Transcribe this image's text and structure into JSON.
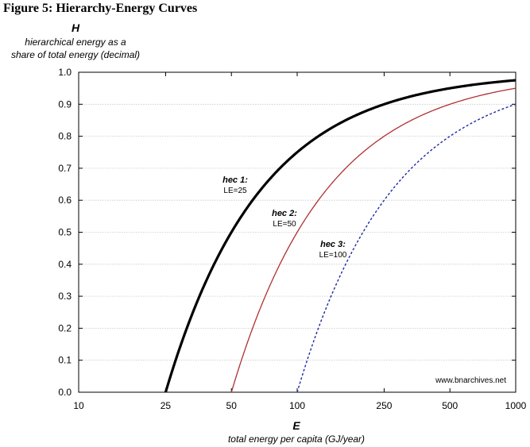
{
  "figure_title": "Figure 5: Hierarchy-Energy Curves",
  "watermark": "www.bnarchives.net",
  "chart_data": {
    "type": "line",
    "x_scale": "log",
    "y_axis": {
      "symbol": "H",
      "label_line1": "hierarchical energy as a",
      "label_line2": "share of total energy (decimal)",
      "ylim": [
        0,
        1
      ],
      "ticks": [
        0.0,
        0.1,
        0.2,
        0.3,
        0.4,
        0.5,
        0.6,
        0.7,
        0.8,
        0.9,
        1.0
      ],
      "tick_labels": [
        "0.0",
        "0.1",
        "0.2",
        "0.3",
        "0.4",
        "0.5",
        "0.6",
        "0.7",
        "0.8",
        "0.9",
        "1.0"
      ]
    },
    "x_axis": {
      "symbol": "E",
      "label": "total energy per capita (GJ/year)",
      "xlim": [
        10,
        1000
      ],
      "ticks": [
        10,
        25,
        50,
        100,
        250,
        500,
        1000
      ],
      "tick_labels": [
        "10",
        "25",
        "50",
        "100",
        "250",
        "500",
        "1000"
      ]
    },
    "grid": "horizontal",
    "series": [
      {
        "name": "hec 1:",
        "param": "LE=25",
        "color": "#000000",
        "style": "solid-thick",
        "points": [
          [
            25,
            0.0
          ],
          [
            30,
            0.167
          ],
          [
            40,
            0.375
          ],
          [
            50,
            0.5
          ],
          [
            75,
            0.667
          ],
          [
            100,
            0.75
          ],
          [
            150,
            0.833
          ],
          [
            200,
            0.875
          ],
          [
            300,
            0.917
          ],
          [
            500,
            0.95
          ],
          [
            1000,
            0.975
          ]
        ]
      },
      {
        "name": "hec 2:",
        "param": "LE=50",
        "color": "#b03030",
        "style": "solid",
        "points": [
          [
            50,
            0.0
          ],
          [
            60,
            0.167
          ],
          [
            75,
            0.333
          ],
          [
            100,
            0.5
          ],
          [
            150,
            0.667
          ],
          [
            200,
            0.75
          ],
          [
            300,
            0.833
          ],
          [
            500,
            0.9
          ],
          [
            1000,
            0.95
          ]
        ]
      },
      {
        "name": "hec 3:",
        "param": "LE=100",
        "color": "#1e2aa0",
        "style": "dotted",
        "points": [
          [
            100,
            0.0
          ],
          [
            125,
            0.2
          ],
          [
            150,
            0.333
          ],
          [
            200,
            0.5
          ],
          [
            300,
            0.667
          ],
          [
            500,
            0.8
          ],
          [
            1000,
            0.9
          ]
        ]
      }
    ]
  }
}
